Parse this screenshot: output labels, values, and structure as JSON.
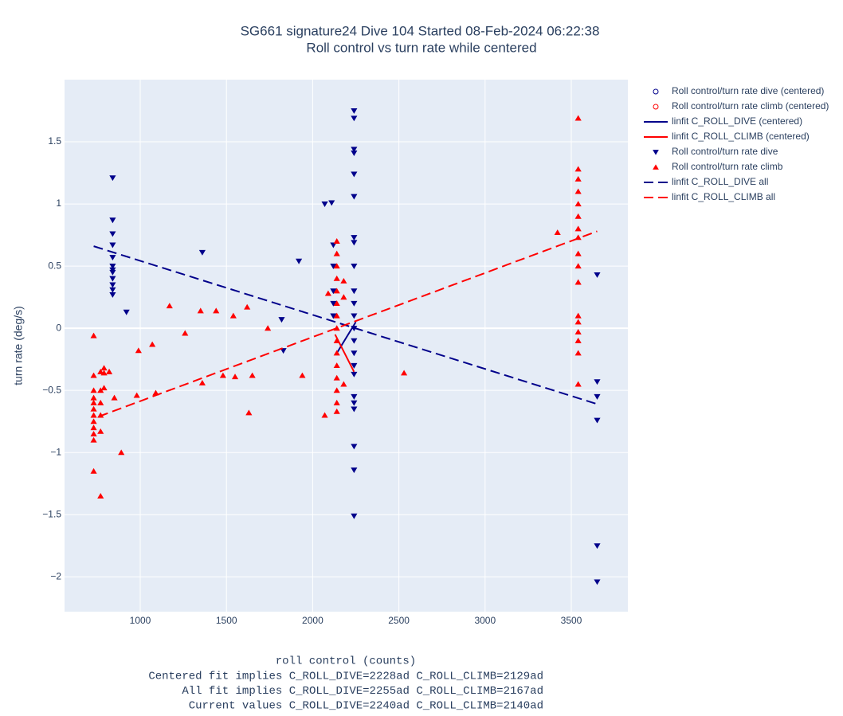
{
  "chart_data": {
    "type": "scatter",
    "title": "SG661 signature24 Dive 104 Started 08-Feb-2024 06:22:38",
    "subtitle": "Roll control vs turn rate while centered",
    "x_label": "roll control (counts)",
    "y_label": "turn rate (deg/s)",
    "annotations": [
      "Centered fit implies C_ROLL_DIVE=2228ad C_ROLL_CLIMB=2129ad",
      "All fit implies C_ROLL_DIVE=2255ad C_ROLL_CLIMB=2167ad",
      "Current values C_ROLL_DIVE=2240ad C_ROLL_CLIMB=2140ad"
    ],
    "xlim": [
      561,
      3828
    ],
    "ylim": [
      -2.28,
      2.0
    ],
    "xticks": [
      1000,
      1500,
      2000,
      2500,
      3000,
      3500
    ],
    "yticks": [
      {
        "value": -2,
        "label": "−2"
      },
      {
        "value": -1.5,
        "label": "−1.5"
      },
      {
        "value": -1,
        "label": "−1"
      },
      {
        "value": -0.5,
        "label": "−0.5"
      },
      0,
      0.5,
      1,
      1.5
    ],
    "grid": true,
    "legend": "right",
    "series": [
      {
        "name": "Roll control/turn rate dive (centered)",
        "color": "#00008b",
        "marker": "circle-open",
        "x": [],
        "values": []
      },
      {
        "name": "Roll control/turn rate climb (centered)",
        "color": "#ff0000",
        "marker": "circle-open",
        "x": [],
        "values": []
      },
      {
        "name": "linfit C_ROLL_DIVE (centered)",
        "color": "#00008b",
        "line": "solid",
        "x": [
          2140,
          2250
        ],
        "values": [
          -0.2,
          0.05
        ]
      },
      {
        "name": "linfit C_ROLL_CLIMB (centered)",
        "color": "#ff0000",
        "line": "solid",
        "x": [
          2130,
          2240
        ],
        "values": [
          -0.05,
          -0.35
        ]
      },
      {
        "name": "Roll control/turn rate dive",
        "color": "#00008b",
        "marker": "triangle-down",
        "x": [
          840,
          840,
          840,
          840,
          840,
          840,
          840,
          840,
          840,
          840,
          840,
          840,
          920,
          1360,
          1820,
          1830,
          1920,
          2070,
          2110,
          2120,
          2120,
          2120,
          2120,
          2120,
          2240,
          2240,
          2240,
          2240,
          2240,
          2240,
          2240,
          2240,
          2240,
          2240,
          2240,
          2240,
          2240,
          2240,
          2240,
          2240,
          2240,
          2240,
          2240,
          2240,
          2240,
          2240,
          2240,
          3650,
          3650,
          3650,
          3650,
          3650,
          3650
        ],
        "values": [
          1.21,
          0.87,
          0.76,
          0.67,
          0.57,
          0.5,
          0.47,
          0.45,
          0.4,
          0.35,
          0.31,
          0.27,
          0.13,
          0.61,
          0.07,
          -0.18,
          0.54,
          1.0,
          1.01,
          0.67,
          0.5,
          0.3,
          0.2,
          0.1,
          1.75,
          1.69,
          1.44,
          1.41,
          1.24,
          1.06,
          0.73,
          0.69,
          0.5,
          0.3,
          0.2,
          0.1,
          0,
          -0.1,
          -0.2,
          -0.3,
          -0.37,
          -0.55,
          -0.6,
          -0.65,
          -0.95,
          -1.14,
          -1.51,
          0.43,
          -0.43,
          -0.55,
          -0.74,
          -1.75,
          -2.04
        ]
      },
      {
        "name": "Roll control/turn rate climb",
        "color": "#ff0000",
        "marker": "triangle-up",
        "x": [
          730,
          730,
          730,
          730,
          730,
          730,
          730,
          730,
          730,
          730,
          730,
          730,
          770,
          770,
          770,
          770,
          770,
          770,
          790,
          790,
          790,
          820,
          850,
          890,
          980,
          990,
          1070,
          1090,
          1170,
          1260,
          1350,
          1360,
          1440,
          1480,
          1540,
          1550,
          1620,
          1630,
          1650,
          1740,
          1940,
          2070,
          2090,
          2140,
          2140,
          2140,
          2140,
          2140,
          2140,
          2140,
          2140,
          2140,
          2140,
          2140,
          2140,
          2140,
          2140,
          2140,
          2180,
          2180,
          2180,
          2530,
          3420,
          3540,
          3540,
          3540,
          3540,
          3540,
          3540,
          3540,
          3540,
          3540,
          3540,
          3540,
          3540,
          3540,
          3540,
          3540,
          3540,
          3540
        ],
        "values": [
          -0.06,
          -0.38,
          -0.5,
          -0.56,
          -0.6,
          -0.65,
          -0.7,
          -0.75,
          -0.8,
          -0.85,
          -0.9,
          -1.15,
          -0.35,
          -0.5,
          -0.6,
          -0.7,
          -0.83,
          -1.35,
          -0.32,
          -0.36,
          -0.48,
          -0.35,
          -0.56,
          -1.0,
          -0.54,
          -0.18,
          -0.13,
          -0.52,
          0.18,
          -0.04,
          0.14,
          -0.44,
          0.14,
          -0.38,
          0.1,
          -0.39,
          0.17,
          -0.68,
          -0.38,
          0,
          -0.38,
          -0.7,
          0.28,
          0.7,
          0.6,
          0.5,
          0.4,
          0.3,
          0.2,
          0.1,
          0,
          -0.1,
          -0.2,
          -0.3,
          -0.4,
          -0.5,
          -0.6,
          -0.67,
          0.38,
          0.25,
          -0.45,
          -0.36,
          0.77,
          1.69,
          1.28,
          1.2,
          1.1,
          1.0,
          0.9,
          0.8,
          0.73,
          0.6,
          0.5,
          0.37,
          0.1,
          0.05,
          -0.03,
          -0.1,
          -0.2,
          -0.45
        ]
      },
      {
        "name": "linfit C_ROLL_DIVE all",
        "color": "#00008b",
        "line": "dash",
        "x": [
          730,
          3650
        ],
        "values": [
          0.66,
          -0.61
        ]
      },
      {
        "name": "linfit C_ROLL_CLIMB all",
        "color": "#ff0000",
        "line": "dash",
        "x": [
          760,
          3650
        ],
        "values": [
          -0.71,
          0.78
        ]
      }
    ]
  }
}
